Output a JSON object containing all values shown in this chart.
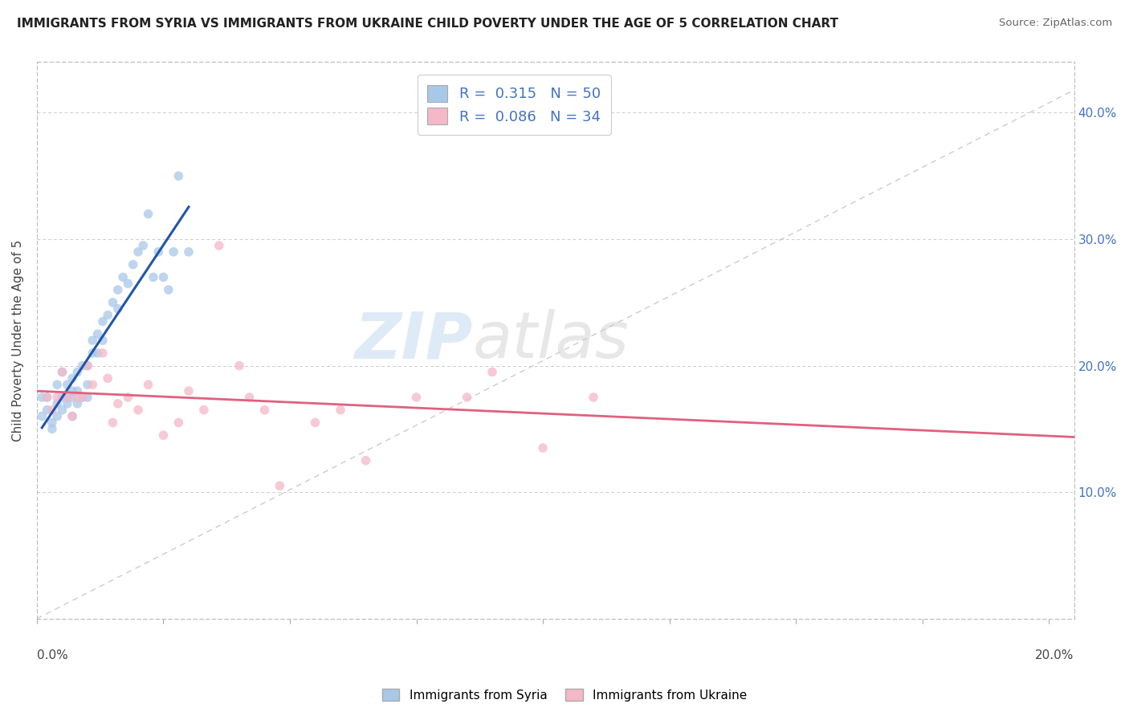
{
  "title": "IMMIGRANTS FROM SYRIA VS IMMIGRANTS FROM UKRAINE CHILD POVERTY UNDER THE AGE OF 5 CORRELATION CHART",
  "source": "Source: ZipAtlas.com",
  "ylabel": "Child Poverty Under the Age of 5",
  "syria_color": "#a8c8e8",
  "ukraine_color": "#f4b8c8",
  "syria_line_color": "#2255aa",
  "ukraine_line_color": "#e06080",
  "watermark_zip": "ZIP",
  "watermark_atlas": "atlas",
  "legend_R_syria": "0.315",
  "legend_N_syria": "50",
  "legend_R_ukraine": "0.086",
  "legend_N_ukraine": "34",
  "syria_scatter_x": [
    0.001,
    0.001,
    0.002,
    0.002,
    0.003,
    0.003,
    0.004,
    0.004,
    0.004,
    0.005,
    0.005,
    0.005,
    0.006,
    0.006,
    0.006,
    0.007,
    0.007,
    0.007,
    0.007,
    0.008,
    0.008,
    0.008,
    0.009,
    0.009,
    0.01,
    0.01,
    0.01,
    0.011,
    0.011,
    0.012,
    0.012,
    0.013,
    0.013,
    0.014,
    0.015,
    0.016,
    0.016,
    0.017,
    0.018,
    0.019,
    0.02,
    0.021,
    0.022,
    0.023,
    0.024,
    0.025,
    0.026,
    0.027,
    0.028,
    0.03
  ],
  "syria_scatter_y": [
    0.175,
    0.16,
    0.175,
    0.165,
    0.15,
    0.155,
    0.17,
    0.16,
    0.185,
    0.175,
    0.165,
    0.195,
    0.175,
    0.185,
    0.17,
    0.18,
    0.16,
    0.175,
    0.19,
    0.18,
    0.17,
    0.195,
    0.2,
    0.175,
    0.2,
    0.185,
    0.175,
    0.22,
    0.21,
    0.225,
    0.21,
    0.235,
    0.22,
    0.24,
    0.25,
    0.26,
    0.245,
    0.27,
    0.265,
    0.28,
    0.29,
    0.295,
    0.32,
    0.27,
    0.29,
    0.27,
    0.26,
    0.29,
    0.35,
    0.29
  ],
  "ukraine_scatter_x": [
    0.002,
    0.003,
    0.004,
    0.005,
    0.006,
    0.007,
    0.008,
    0.009,
    0.01,
    0.011,
    0.013,
    0.014,
    0.015,
    0.016,
    0.018,
    0.02,
    0.022,
    0.025,
    0.028,
    0.03,
    0.033,
    0.036,
    0.04,
    0.042,
    0.045,
    0.048,
    0.055,
    0.06,
    0.065,
    0.075,
    0.085,
    0.09,
    0.1,
    0.11
  ],
  "ukraine_scatter_y": [
    0.175,
    0.165,
    0.175,
    0.195,
    0.175,
    0.16,
    0.175,
    0.175,
    0.2,
    0.185,
    0.21,
    0.19,
    0.155,
    0.17,
    0.175,
    0.165,
    0.185,
    0.145,
    0.155,
    0.18,
    0.165,
    0.295,
    0.2,
    0.175,
    0.165,
    0.105,
    0.155,
    0.165,
    0.125,
    0.175,
    0.175,
    0.195,
    0.135,
    0.175
  ],
  "xlim": [
    0.0,
    0.205
  ],
  "ylim": [
    0.0,
    0.44
  ],
  "ytick_vals": [
    0.1,
    0.2,
    0.3,
    0.4
  ],
  "ytick_labels": [
    "10.0%",
    "20.0%",
    "30.0%",
    "40.0%"
  ],
  "figsize": [
    14.06,
    8.92
  ],
  "dpi": 100
}
